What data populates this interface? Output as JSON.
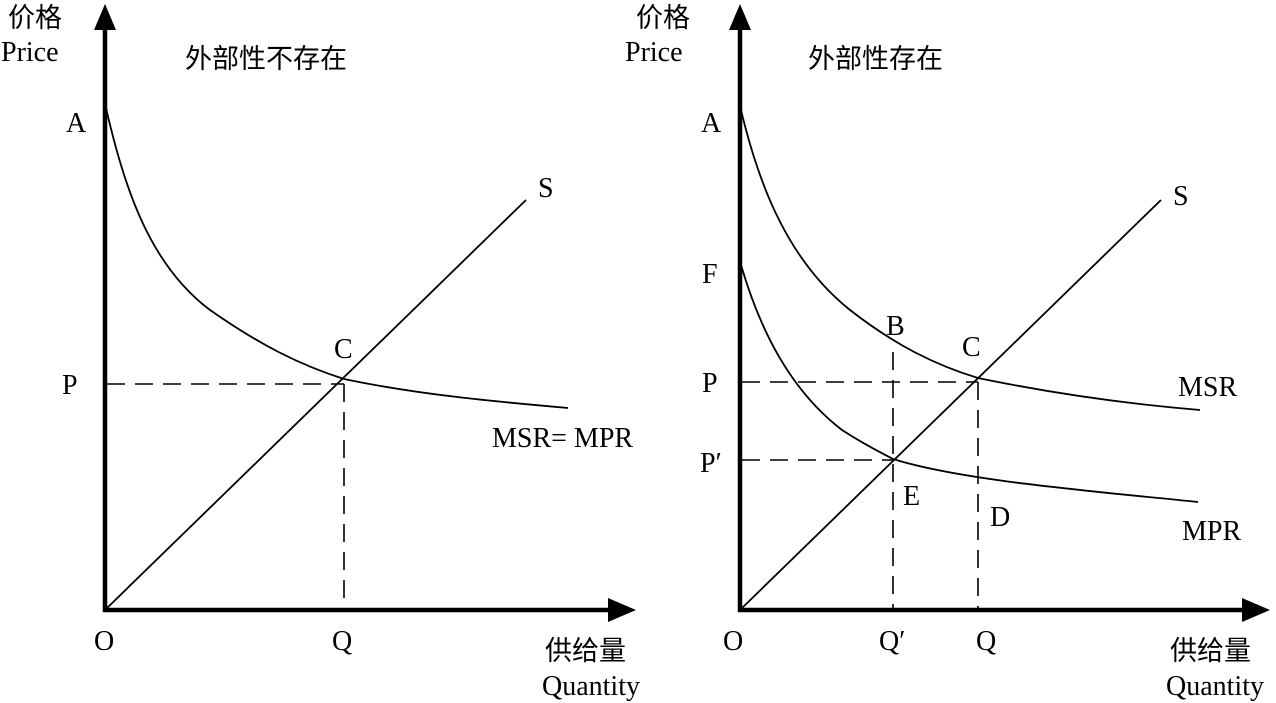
{
  "left_panel": {
    "title": "外部性不存在",
    "y_axis_label_cn": "价格",
    "y_axis_label_en": "Price",
    "x_axis_label_cn": "供给量",
    "x_axis_label_en": "Quantity",
    "origin": "O",
    "point_a": "A",
    "point_p": "P",
    "point_c": "C",
    "point_q": "Q",
    "supply_label": "S",
    "curve_label": "MSR= MPR"
  },
  "right_panel": {
    "title": "外部性存在",
    "y_axis_label_cn": "价格",
    "y_axis_label_en": "Price",
    "x_axis_label_cn": "供给量",
    "x_axis_label_en": "Quantity",
    "origin": "O",
    "point_a": "A",
    "point_f": "F",
    "point_p": "P",
    "point_p_prime": "P′",
    "point_b": "B",
    "point_c": "C",
    "point_e": "E",
    "point_d": "D",
    "point_q_prime": "Q′",
    "point_q": "Q",
    "supply_label": "S",
    "msr_label": "MSR",
    "mpr_label": "MPR"
  }
}
